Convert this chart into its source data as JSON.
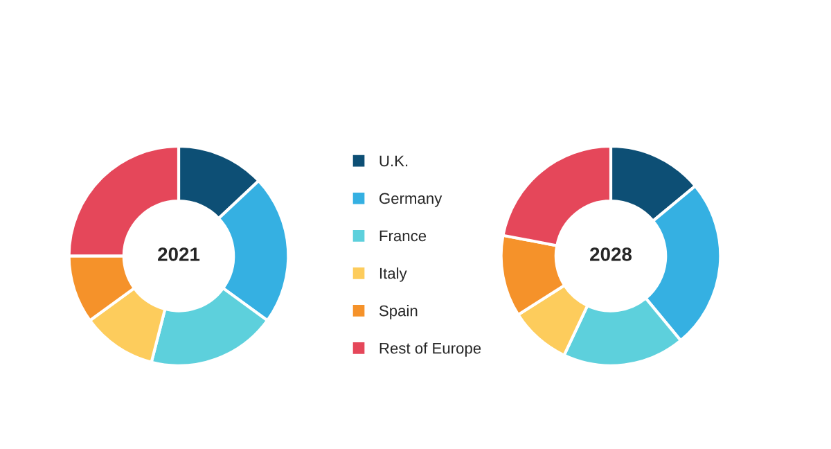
{
  "chart_data": [
    {
      "type": "donut",
      "title": "2021",
      "categories": [
        "U.K.",
        "Germany",
        "France",
        "Italy",
        "Spain",
        "Rest of Europe"
      ],
      "values": [
        13,
        22,
        19,
        11,
        10,
        25
      ],
      "colors": [
        "#0d4f75",
        "#35b0e2",
        "#5dd0dc",
        "#fdcc5c",
        "#f5922a",
        "#e5475a"
      ],
      "legend": "right"
    },
    {
      "type": "donut",
      "title": "2028",
      "categories": [
        null,
        null,
        null,
        null,
        null,
        null
      ],
      "values": [
        14,
        25,
        18,
        9,
        12,
        22
      ],
      "colors": [
        "#0d4f75",
        "#35b0e2",
        "#5dd0dc",
        "#fdcc5c",
        "#f5922a",
        "#e5475a"
      ]
    }
  ]
}
